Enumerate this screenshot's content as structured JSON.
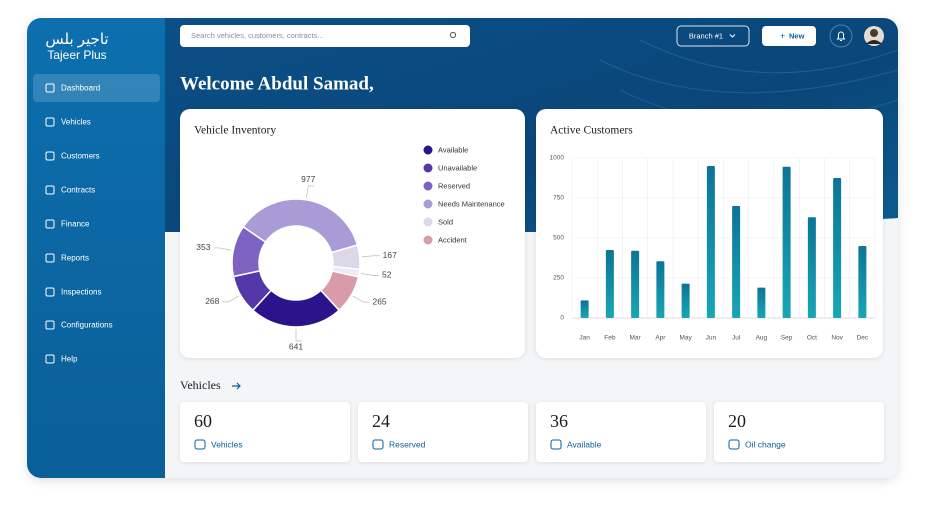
{
  "sidebar": {
    "logo_arabic": "تاجير بلس",
    "logo": "Tajeer Plus",
    "items": [
      "Dashboard",
      "Vehicles",
      "Customers",
      "Contracts",
      "Finance",
      "Reports",
      "Inspections",
      "Configurations",
      "Help"
    ],
    "active": 0
  },
  "header": {
    "search_placeholder": "Search vehicles, customers, contracts...",
    "branch": "Branch #1",
    "new_button": "New"
  },
  "welcome": "Welcome Abdul Samad,",
  "inventory": {
    "type": "pie",
    "title": "Vehicle Inventory",
    "categories": [
      "Available",
      "Unavailable",
      "Reserved",
      "Needs Maintenance",
      "Sold",
      null,
      "Accident"
    ],
    "values": [
      641,
      268,
      353,
      977,
      167,
      52,
      265
    ],
    "colors": [
      "#2b138c",
      "#5437a8",
      "#7d62c2",
      "#a99bd6",
      "#dcd8ea",
      "#eceaf2",
      "#d99ba9"
    ]
  },
  "customers": {
    "type": "bar",
    "title": "Active Customers",
    "categories": [
      "Jan",
      "Feb",
      "Mar",
      "Apr",
      "May",
      "Jun",
      "Jul",
      "Aug",
      "Sep",
      "Oct",
      "Nov",
      "Dec"
    ],
    "values": [
      110,
      425,
      420,
      355,
      215,
      950,
      700,
      190,
      945,
      630,
      875,
      450
    ],
    "color": "#0f86a3",
    "ylim": [
      0,
      1000
    ],
    "yticks": [
      0,
      250,
      500,
      750,
      1000
    ],
    "grid": true
  },
  "vehicles": {
    "title": "Vehicles",
    "cards": [
      {
        "value": 60,
        "label": "Vehicles"
      },
      {
        "value": 24,
        "label": "Reserved"
      },
      {
        "value": 36,
        "label": "Available"
      },
      {
        "value": 20,
        "label": "Oil change"
      }
    ]
  }
}
